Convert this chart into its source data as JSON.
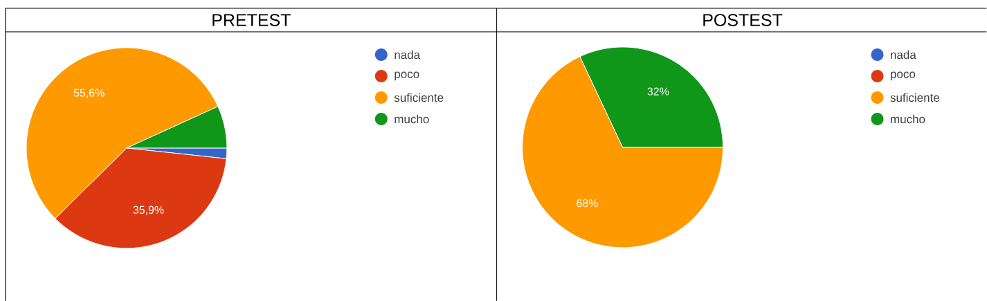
{
  "chart_data": [
    {
      "type": "pie",
      "title": "PRETEST",
      "categories": [
        "nada",
        "poco",
        "suficiente",
        "mucho"
      ],
      "values": [
        1.7,
        35.9,
        55.6,
        6.8
      ],
      "colors": [
        "#3366cc",
        "#dc3912",
        "#ff9900",
        "#109618"
      ],
      "value_labels": [
        null,
        "35,9%",
        "55,6%",
        null
      ],
      "legend": "top right"
    },
    {
      "type": "pie",
      "title": "POSTEST",
      "categories": [
        "nada",
        "poco",
        "suficiente",
        "mucho"
      ],
      "values": [
        0,
        0,
        68,
        32
      ],
      "colors": [
        "#3366cc",
        "#dc3912",
        "#ff9900",
        "#109618"
      ],
      "value_labels": [
        null,
        null,
        "68%",
        "32%"
      ],
      "legend": "top right"
    }
  ]
}
